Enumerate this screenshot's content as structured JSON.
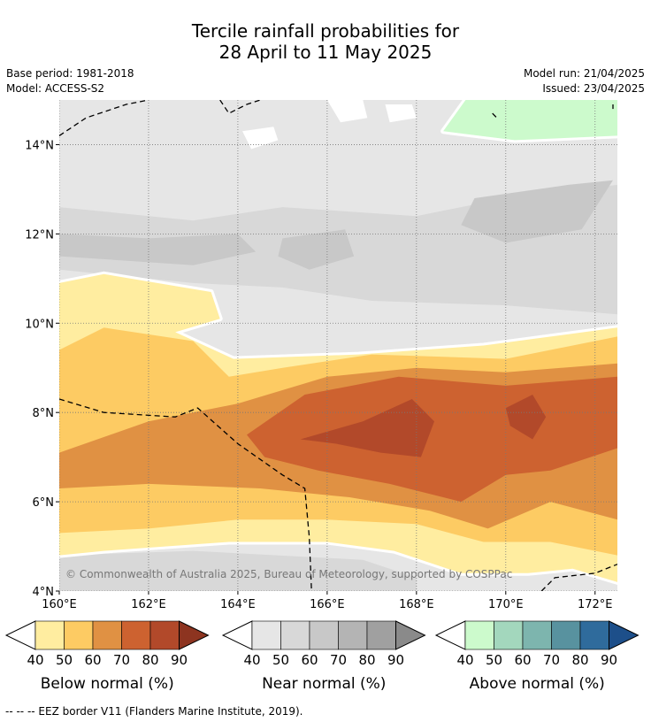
{
  "title_line1": "Tercile rainfall probabilities for",
  "title_line2": "28 April to 11 May 2025",
  "base_period": "Base period: 1981-2018",
  "model": "Model: ACCESS-S2",
  "model_run": "Model run: 21/04/2025",
  "issued": "Issued: 23/04/2025",
  "copyright": "© Commonwealth of Australia 2025, Bureau of Meteorology, supported by COSPPac",
  "footer": "-- -- -- EEZ border V11 (Flanders Marine Institute, 2019).",
  "chart_data": {
    "type": "heatmap",
    "xlabel": "",
    "ylabel": "",
    "xlim": [
      160,
      172.5
    ],
    "ylim": [
      4,
      15
    ],
    "x_ticks": [
      {
        "value": 160,
        "label": "160°E"
      },
      {
        "value": 162,
        "label": "162°E"
      },
      {
        "value": 164,
        "label": "164°E"
      },
      {
        "value": 166,
        "label": "166°E"
      },
      {
        "value": 168,
        "label": "168°E"
      },
      {
        "value": 170,
        "label": "170°E"
      },
      {
        "value": 172,
        "label": "172°E"
      }
    ],
    "y_ticks": [
      {
        "value": 4,
        "label": "4°N"
      },
      {
        "value": 6,
        "label": "6°N"
      },
      {
        "value": 8,
        "label": "8°N"
      },
      {
        "value": 10,
        "label": "10°N"
      },
      {
        "value": 12,
        "label": "12°N"
      },
      {
        "value": 14,
        "label": "14°N"
      }
    ],
    "grid": true,
    "regions": [
      {
        "category": "near",
        "level": 40,
        "points": [
          [
            160,
            15
          ],
          [
            172.5,
            15
          ],
          [
            172.5,
            4
          ],
          [
            160,
            4
          ]
        ]
      },
      {
        "category": "near",
        "level": 50,
        "points": [
          [
            160,
            12.6
          ],
          [
            163,
            12.3
          ],
          [
            165,
            12.6
          ],
          [
            168,
            12.4
          ],
          [
            170,
            12.8
          ],
          [
            172.5,
            13.1
          ],
          [
            172.5,
            10.2
          ],
          [
            170,
            10.4
          ],
          [
            167,
            10.5
          ],
          [
            165,
            10.8
          ],
          [
            163,
            10.9
          ],
          [
            160,
            11.2
          ]
        ]
      },
      {
        "category": "near",
        "level": 60,
        "points": [
          [
            160,
            12.0
          ],
          [
            162,
            11.9
          ],
          [
            164,
            12.0
          ],
          [
            164.4,
            11.6
          ],
          [
            163,
            11.3
          ],
          [
            160,
            11.5
          ]
        ]
      },
      {
        "category": "near",
        "level": 60,
        "points": [
          [
            165,
            11.9
          ],
          [
            166.4,
            12.1
          ],
          [
            166.6,
            11.5
          ],
          [
            165.6,
            11.2
          ],
          [
            164.9,
            11.5
          ]
        ]
      },
      {
        "category": "near",
        "level": 60,
        "points": [
          [
            169.3,
            12.8
          ],
          [
            171.4,
            13.1
          ],
          [
            172.4,
            13.2
          ],
          [
            171.7,
            12.1
          ],
          [
            170,
            11.8
          ],
          [
            169,
            12.2
          ]
        ]
      },
      {
        "category": "near",
        "level": 50,
        "points": [
          [
            160,
            4.8
          ],
          [
            163,
            4.9
          ],
          [
            166.8,
            4.7
          ],
          [
            168,
            4.3
          ],
          [
            168,
            4
          ],
          [
            160,
            4
          ]
        ]
      },
      {
        "category": "above",
        "level": 40,
        "points": [
          [
            169.1,
            15
          ],
          [
            172.5,
            15
          ],
          [
            172.5,
            14.2
          ],
          [
            170.2,
            14.1
          ],
          [
            169.4,
            14.2
          ],
          [
            168.6,
            14.3
          ]
        ]
      },
      {
        "category": "below",
        "level": 40,
        "points": [
          [
            160,
            10.9
          ],
          [
            161,
            11.1
          ],
          [
            163.4,
            10.7
          ],
          [
            163.6,
            10.1
          ],
          [
            162.6,
            9.8
          ],
          [
            163.9,
            9.2
          ],
          [
            166.7,
            9.3
          ],
          [
            169.5,
            9.5
          ],
          [
            172.5,
            9.9
          ],
          [
            172.5,
            4.2
          ],
          [
            171.5,
            4.5
          ],
          [
            170.5,
            4.4
          ],
          [
            169,
            4.4
          ],
          [
            167.5,
            4.9
          ],
          [
            166,
            5.1
          ],
          [
            163.8,
            5.1
          ],
          [
            161,
            4.9
          ],
          [
            160,
            4.8
          ]
        ]
      },
      {
        "category": "below",
        "level": 50,
        "points": [
          [
            160,
            9.4
          ],
          [
            161,
            9.9
          ],
          [
            163,
            9.6
          ],
          [
            163.8,
            8.8
          ],
          [
            165,
            9.0
          ],
          [
            167,
            9.3
          ],
          [
            170,
            9.2
          ],
          [
            172.5,
            9.7
          ],
          [
            172.5,
            4.8
          ],
          [
            171,
            5.1
          ],
          [
            169.5,
            5.1
          ],
          [
            168,
            5.5
          ],
          [
            166,
            5.6
          ],
          [
            164,
            5.6
          ],
          [
            162,
            5.4
          ],
          [
            160,
            5.3
          ]
        ]
      },
      {
        "category": "below",
        "level": 60,
        "points": [
          [
            160,
            7.1
          ],
          [
            162,
            7.8
          ],
          [
            164,
            8.2
          ],
          [
            166,
            8.8
          ],
          [
            168,
            9.0
          ],
          [
            170,
            8.9
          ],
          [
            172.5,
            9.1
          ],
          [
            172.5,
            5.6
          ],
          [
            171,
            6.0
          ],
          [
            169.6,
            5.4
          ],
          [
            168.3,
            5.8
          ],
          [
            166.5,
            6.1
          ],
          [
            164.5,
            6.3
          ],
          [
            162,
            6.4
          ],
          [
            160,
            6.3
          ]
        ]
      },
      {
        "category": "below",
        "level": 70,
        "points": [
          [
            164.2,
            7.5
          ],
          [
            165.5,
            8.4
          ],
          [
            167.6,
            8.8
          ],
          [
            170,
            8.6
          ],
          [
            172.5,
            8.8
          ],
          [
            172.5,
            7.2
          ],
          [
            171,
            6.7
          ],
          [
            170,
            6.6
          ],
          [
            169,
            6.0
          ],
          [
            167.4,
            6.4
          ],
          [
            165.8,
            6.7
          ],
          [
            164.6,
            7.0
          ]
        ]
      },
      {
        "category": "below",
        "level": 80,
        "points": [
          [
            165.4,
            7.4
          ],
          [
            166.8,
            7.8
          ],
          [
            167.9,
            8.3
          ],
          [
            168.4,
            7.8
          ],
          [
            168.1,
            7.0
          ],
          [
            167.2,
            7.1
          ],
          [
            166.2,
            7.3
          ]
        ]
      },
      {
        "category": "below",
        "level": 80,
        "points": [
          [
            170,
            8.1
          ],
          [
            170.6,
            8.4
          ],
          [
            170.9,
            7.9
          ],
          [
            170.6,
            7.4
          ],
          [
            170.1,
            7.7
          ]
        ]
      }
    ],
    "white_patches": [
      [
        [
          164.1,
          14.3
        ],
        [
          164.8,
          14.4
        ],
        [
          164.9,
          14.1
        ],
        [
          164.3,
          13.9
        ]
      ],
      [
        [
          166,
          15
        ],
        [
          166.8,
          15
        ],
        [
          166.9,
          14.6
        ],
        [
          166.3,
          14.5
        ]
      ],
      [
        [
          167.3,
          14.9
        ],
        [
          167.9,
          14.9
        ],
        [
          168,
          14.6
        ],
        [
          167.4,
          14.5
        ]
      ]
    ],
    "eez_lines": [
      [
        [
          160,
          14.2
        ],
        [
          160.6,
          14.6
        ],
        [
          161.5,
          14.9
        ],
        [
          162,
          15
        ]
      ],
      [
        [
          163.6,
          15
        ],
        [
          163.8,
          14.7
        ],
        [
          164.2,
          14.9
        ],
        [
          164.5,
          15
        ]
      ],
      [
        [
          160,
          8.3
        ],
        [
          161,
          8.0
        ],
        [
          162.6,
          7.9
        ],
        [
          163.1,
          8.1
        ],
        [
          164,
          7.3
        ],
        [
          165,
          6.6
        ],
        [
          165.5,
          6.3
        ],
        [
          165.6,
          5.2
        ],
        [
          165.65,
          4
        ]
      ],
      [
        [
          170.8,
          4
        ],
        [
          171.1,
          4.3
        ],
        [
          172,
          4.4
        ],
        [
          172.5,
          4.6
        ]
      ],
      [
        [
          169.7,
          14.7
        ],
        [
          169.8,
          14.6
        ]
      ],
      [
        [
          172.4,
          14.9
        ],
        [
          172.4,
          14.8
        ]
      ]
    ],
    "colorbars": [
      {
        "label": "Below normal (%)",
        "ticks": [
          "40",
          "50",
          "60",
          "70",
          "80",
          "90"
        ],
        "colors": [
          "#ffeda0",
          "#fdcb63",
          "#e09143",
          "#cd6230",
          "#b2492a",
          "#8d3420"
        ]
      },
      {
        "label": "Near normal (%)",
        "ticks": [
          "40",
          "50",
          "60",
          "70",
          "80",
          "90"
        ],
        "colors": [
          "#e6e6e6",
          "#d8d8d8",
          "#c8c8c8",
          "#b4b4b4",
          "#a0a0a0",
          "#8a8a8a"
        ]
      },
      {
        "label": "Above normal (%)",
        "ticks": [
          "40",
          "50",
          "60",
          "70",
          "80",
          "90"
        ],
        "colors": [
          "#ccfacc",
          "#a3d7bd",
          "#7db5ae",
          "#58929f",
          "#2f6b9c",
          "#1d4f8a"
        ]
      }
    ],
    "palette": {
      "below": {
        "40": "#ffeda0",
        "50": "#fdcb63",
        "60": "#e09143",
        "70": "#cd6230",
        "80": "#b2492a"
      },
      "near": {
        "40": "#e6e6e6",
        "50": "#d8d8d8",
        "60": "#c8c8c8"
      },
      "above": {
        "40": "#ccfacc"
      }
    }
  }
}
